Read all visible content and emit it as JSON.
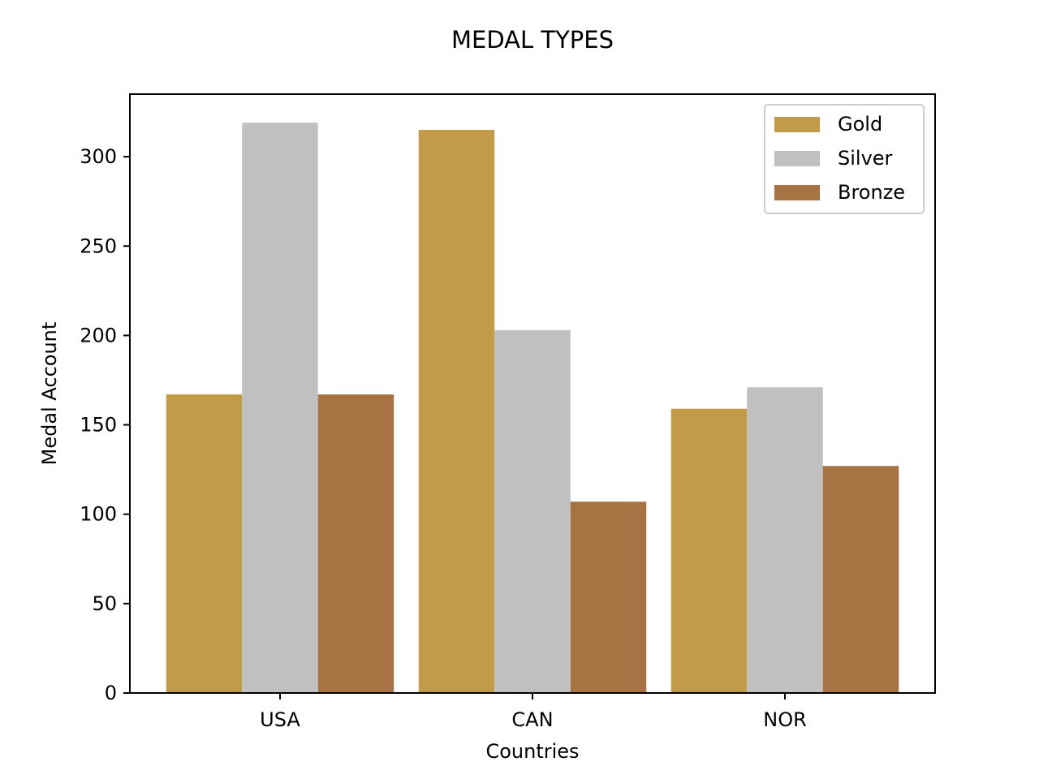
{
  "chart_data": {
    "type": "bar",
    "title": "MEDAL TYPES",
    "xlabel": "Countries",
    "ylabel": "Medal Account",
    "categories": [
      "USA",
      "CAN",
      "NOR"
    ],
    "series": [
      {
        "name": "Gold",
        "color": "#c29b48",
        "values": [
          167,
          315,
          159
        ]
      },
      {
        "name": "Silver",
        "color": "#c0c0c0",
        "values": [
          319,
          203,
          171
        ]
      },
      {
        "name": "Bronze",
        "color": "#a87343",
        "values": [
          167,
          107,
          127
        ]
      }
    ],
    "ylim": [
      0,
      335
    ],
    "yticks": [
      0,
      50,
      100,
      150,
      200,
      250,
      300
    ],
    "grid": false,
    "legend_position": "top-right"
  }
}
